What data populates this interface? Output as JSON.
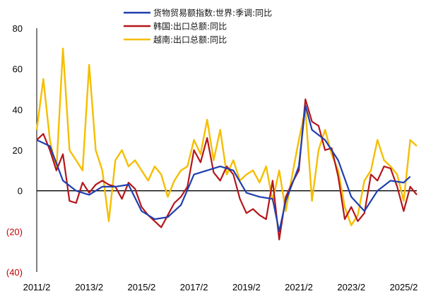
{
  "chart_data": {
    "type": "line",
    "x_ticks": [
      "2011/2",
      "2013/2",
      "2015/2",
      "2017/2",
      "2019/2",
      "2021/2",
      "2023/2",
      "2025/2"
    ],
    "y_ticks": [
      "80",
      "60",
      "40",
      "20",
      "0",
      "(20)",
      "(40)"
    ],
    "y_tick_values": [
      80,
      60,
      40,
      20,
      0,
      -20,
      -40
    ],
    "ylim": [
      -40,
      80
    ],
    "xlim": [
      "2011/2",
      "2025/8"
    ],
    "legend_position": "top-center",
    "series": [
      {
        "name": "货物贸易额指数:世界:季调:同比",
        "color": "#1f3fae",
        "x": [
          "2011/2",
          "2011/8",
          "2012/2",
          "2012/8",
          "2013/2",
          "2013/8",
          "2014/2",
          "2014/8",
          "2015/2",
          "2015/8",
          "2016/2",
          "2016/8",
          "2017/2",
          "2017/8",
          "2018/2",
          "2018/8",
          "2019/2",
          "2019/8",
          "2020/2",
          "2020/5",
          "2020/8",
          "2021/2",
          "2021/5",
          "2021/8",
          "2022/2",
          "2022/8",
          "2023/2",
          "2023/8",
          "2024/2",
          "2024/8",
          "2025/2",
          "2025/5"
        ],
        "values": [
          25,
          22,
          5,
          0,
          -2,
          2,
          2,
          3,
          -10,
          -14,
          -13,
          -7,
          8,
          10,
          12,
          10,
          -1,
          -3,
          -4,
          -20,
          -5,
          12,
          42,
          30,
          25,
          15,
          -3,
          -10,
          0,
          5,
          4,
          7
        ]
      },
      {
        "name": "韩国:出口总额:同比",
        "color": "#b4161b",
        "x": [
          "2011/2",
          "2011/5",
          "2011/8",
          "2011/11",
          "2012/2",
          "2012/5",
          "2012/8",
          "2012/11",
          "2013/2",
          "2013/5",
          "2013/8",
          "2013/11",
          "2014/2",
          "2014/5",
          "2014/8",
          "2014/11",
          "2015/2",
          "2015/5",
          "2015/8",
          "2015/11",
          "2016/2",
          "2016/5",
          "2016/8",
          "2016/11",
          "2017/2",
          "2017/5",
          "2017/8",
          "2017/11",
          "2018/2",
          "2018/5",
          "2018/8",
          "2018/11",
          "2019/2",
          "2019/5",
          "2019/8",
          "2019/11",
          "2020/2",
          "2020/5",
          "2020/8",
          "2020/11",
          "2021/2",
          "2021/5",
          "2021/8",
          "2021/11",
          "2022/2",
          "2022/5",
          "2022/8",
          "2022/11",
          "2023/2",
          "2023/5",
          "2023/8",
          "2023/11",
          "2024/2",
          "2024/5",
          "2024/8",
          "2024/11",
          "2025/2",
          "2025/5",
          "2025/8"
        ],
        "values": [
          25,
          28,
          20,
          10,
          18,
          -5,
          -6,
          4,
          -1,
          3,
          5,
          3,
          2,
          -4,
          4,
          1,
          -8,
          -12,
          -15,
          -18,
          -12,
          -6,
          -3,
          2,
          20,
          14,
          26,
          9,
          5,
          12,
          8,
          -4,
          -11,
          -9,
          -12,
          -14,
          5,
          -24,
          -3,
          4,
          10,
          45,
          34,
          32,
          20,
          21,
          7,
          -14,
          -8,
          -15,
          -11,
          8,
          5,
          12,
          11,
          2,
          -10,
          2,
          -2
        ]
      },
      {
        "name": "越南:出口总额:同比",
        "color": "#f5be00",
        "x": [
          "2011/2",
          "2011/5",
          "2011/8",
          "2011/11",
          "2012/2",
          "2012/5",
          "2012/8",
          "2012/11",
          "2013/2",
          "2013/5",
          "2013/8",
          "2013/11",
          "2014/2",
          "2014/5",
          "2014/8",
          "2014/11",
          "2015/2",
          "2015/5",
          "2015/8",
          "2015/11",
          "2016/2",
          "2016/5",
          "2016/8",
          "2016/11",
          "2017/2",
          "2017/5",
          "2017/8",
          "2017/11",
          "2018/2",
          "2018/5",
          "2018/8",
          "2018/11",
          "2019/2",
          "2019/5",
          "2019/8",
          "2019/11",
          "2020/2",
          "2020/5",
          "2020/8",
          "2020/11",
          "2021/2",
          "2021/5",
          "2021/8",
          "2021/11",
          "2022/2",
          "2022/5",
          "2022/8",
          "2022/11",
          "2023/2",
          "2023/5",
          "2023/8",
          "2023/11",
          "2024/2",
          "2024/5",
          "2024/8",
          "2024/11",
          "2025/2",
          "2025/5",
          "2025/8"
        ],
        "values": [
          30,
          55,
          25,
          10,
          70,
          20,
          15,
          10,
          62,
          20,
          10,
          -15,
          15,
          20,
          12,
          15,
          10,
          5,
          12,
          8,
          -3,
          5,
          10,
          12,
          25,
          18,
          35,
          15,
          30,
          8,
          15,
          5,
          8,
          10,
          4,
          12,
          -5,
          10,
          -10,
          8,
          25,
          40,
          -5,
          20,
          30,
          18,
          10,
          -8,
          -17,
          -12,
          5,
          10,
          25,
          15,
          12,
          8,
          -5,
          25,
          22
        ]
      }
    ]
  }
}
